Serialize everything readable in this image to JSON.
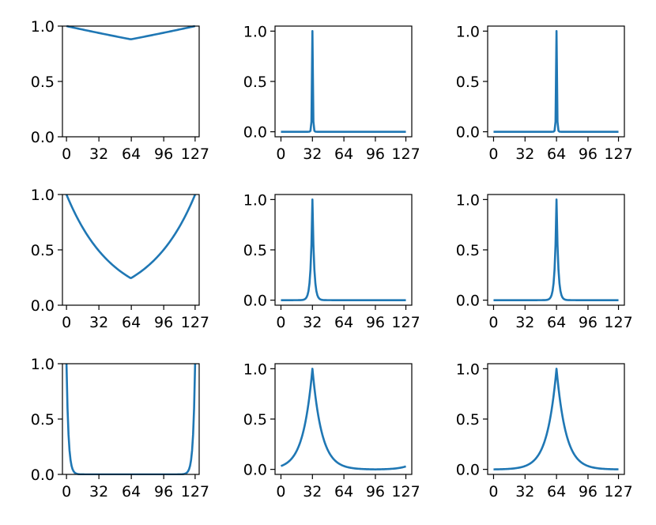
{
  "chart_data": [
    {
      "type": "line",
      "row": 0,
      "col": 0,
      "func": "edge",
      "p": 0.998,
      "xlim": [
        -4,
        131
      ],
      "ylim": [
        0,
        1
      ],
      "xticks": [
        0,
        32,
        64,
        96,
        127
      ],
      "xtick_labels": [
        "0",
        "32",
        "64",
        "96",
        "127"
      ],
      "yticks": [
        0,
        0.5,
        1
      ],
      "ytick_labels": [
        "0.0",
        "0.5",
        "1.0"
      ],
      "color": "#1f77b4",
      "x": [
        0,
        16,
        32,
        48,
        64,
        80,
        96,
        112,
        127
      ],
      "y": [
        1.0,
        0.97,
        0.94,
        0.91,
        0.88,
        0.91,
        0.94,
        0.97,
        1.0
      ]
    },
    {
      "type": "line",
      "row": 0,
      "col": 1,
      "func": "peak",
      "center": 32,
      "p": 0.1,
      "xlim": [
        -6,
        133
      ],
      "ylim": [
        -0.05,
        1.05
      ],
      "xticks": [
        0,
        32,
        64,
        96,
        127
      ],
      "xtick_labels": [
        "0",
        "32",
        "64",
        "96",
        "127"
      ],
      "yticks": [
        0,
        0.5,
        1
      ],
      "ytick_labels": [
        "0.0",
        "0.5",
        "1.0"
      ],
      "color": "#1f77b4",
      "x": [
        0,
        30,
        31,
        32,
        33,
        34,
        64,
        127
      ],
      "y": [
        0,
        0.001,
        0.1,
        1.0,
        0.1,
        0.01,
        0,
        0
      ]
    },
    {
      "type": "line",
      "row": 0,
      "col": 2,
      "func": "peak",
      "center": 64,
      "p": 0.1,
      "xlim": [
        -6,
        133
      ],
      "ylim": [
        -0.05,
        1.05
      ],
      "xticks": [
        0,
        32,
        64,
        96,
        127
      ],
      "xtick_labels": [
        "0",
        "32",
        "64",
        "96",
        "127"
      ],
      "yticks": [
        0,
        0.5,
        1
      ],
      "ytick_labels": [
        "0.0",
        "0.5",
        "1.0"
      ],
      "color": "#1f77b4",
      "x": [
        0,
        62,
        63,
        64,
        65,
        66,
        127
      ],
      "y": [
        0,
        0.001,
        0.1,
        1.0,
        0.1,
        0.01,
        0
      ]
    },
    {
      "type": "line",
      "row": 1,
      "col": 0,
      "func": "edge",
      "p": 0.978,
      "xlim": [
        -4,
        131
      ],
      "ylim": [
        0,
        1
      ],
      "xticks": [
        0,
        32,
        64,
        96,
        127
      ],
      "xtick_labels": [
        "0",
        "32",
        "64",
        "96",
        "127"
      ],
      "yticks": [
        0,
        0.5,
        1
      ],
      "ytick_labels": [
        "0.0",
        "0.5",
        "1.0"
      ],
      "color": "#1f77b4",
      "x": [
        0,
        16,
        32,
        48,
        64,
        80,
        96,
        112,
        127
      ],
      "y": [
        1.0,
        0.7,
        0.49,
        0.35,
        0.24,
        0.35,
        0.49,
        0.7,
        1.0
      ]
    },
    {
      "type": "line",
      "row": 1,
      "col": 1,
      "func": "peak",
      "center": 32,
      "p": 0.55,
      "xlim": [
        -6,
        133
      ],
      "ylim": [
        -0.05,
        1.05
      ],
      "xticks": [
        0,
        32,
        64,
        96,
        127
      ],
      "xtick_labels": [
        "0",
        "32",
        "64",
        "96",
        "127"
      ],
      "yticks": [
        0,
        0.5,
        1
      ],
      "ytick_labels": [
        "0.0",
        "0.5",
        "1.0"
      ],
      "color": "#1f77b4",
      "x": [
        0,
        28,
        30,
        31,
        32,
        33,
        34,
        36,
        64,
        127
      ],
      "y": [
        0,
        0.03,
        0.3,
        0.55,
        1.0,
        0.55,
        0.3,
        0.03,
        0,
        0
      ]
    },
    {
      "type": "line",
      "row": 1,
      "col": 2,
      "func": "peak",
      "center": 64,
      "p": 0.55,
      "xlim": [
        -6,
        133
      ],
      "ylim": [
        -0.05,
        1.05
      ],
      "xticks": [
        0,
        32,
        64,
        96,
        127
      ],
      "xtick_labels": [
        "0",
        "32",
        "64",
        "96",
        "127"
      ],
      "yticks": [
        0,
        0.5,
        1
      ],
      "ytick_labels": [
        "0.0",
        "0.5",
        "1.0"
      ],
      "color": "#1f77b4",
      "x": [
        0,
        60,
        62,
        63,
        64,
        65,
        66,
        68,
        127
      ],
      "y": [
        0,
        0.03,
        0.3,
        0.55,
        1.0,
        0.55,
        0.3,
        0.03,
        0
      ]
    },
    {
      "type": "line",
      "row": 2,
      "col": 0,
      "func": "edge",
      "p": 0.6,
      "xlim": [
        -4,
        131
      ],
      "ylim": [
        0,
        1
      ],
      "xticks": [
        0,
        32,
        64,
        96,
        127
      ],
      "xtick_labels": [
        "0",
        "32",
        "64",
        "96",
        "127"
      ],
      "yticks": [
        0,
        0.5,
        1
      ],
      "ytick_labels": [
        "0.0",
        "0.5",
        "1.0"
      ],
      "color": "#1f77b4",
      "x": [
        0,
        2,
        4,
        8,
        16,
        64,
        112,
        120,
        124,
        127
      ],
      "y": [
        1.0,
        0.36,
        0.13,
        0.02,
        0,
        0,
        0,
        0.02,
        0.3,
        1.0
      ]
    },
    {
      "type": "line",
      "row": 2,
      "col": 1,
      "func": "peak",
      "center": 32,
      "p": 0.9,
      "xlim": [
        -6,
        133
      ],
      "ylim": [
        -0.05,
        1.05
      ],
      "xticks": [
        0,
        32,
        64,
        96,
        127
      ],
      "xtick_labels": [
        "0",
        "32",
        "64",
        "96",
        "127"
      ],
      "yticks": [
        0,
        0.5,
        1
      ],
      "ytick_labels": [
        "0.0",
        "0.5",
        "1.0"
      ],
      "color": "#1f77b4",
      "x": [
        0,
        16,
        24,
        28,
        32,
        36,
        40,
        48,
        64,
        96,
        127
      ],
      "y": [
        0.07,
        0.2,
        0.4,
        0.65,
        1.0,
        0.65,
        0.4,
        0.2,
        0.07,
        0.0,
        0.07
      ]
    },
    {
      "type": "line",
      "row": 2,
      "col": 2,
      "func": "peak",
      "center": 64,
      "p": 0.9,
      "xlim": [
        -6,
        133
      ],
      "ylim": [
        -0.05,
        1.05
      ],
      "xticks": [
        0,
        32,
        64,
        96,
        127
      ],
      "xtick_labels": [
        "0",
        "32",
        "64",
        "96",
        "127"
      ],
      "yticks": [
        0,
        0.5,
        1
      ],
      "ytick_labels": [
        "0.0",
        "0.5",
        "1.0"
      ],
      "color": "#1f77b4",
      "x": [
        0,
        32,
        48,
        56,
        60,
        64,
        68,
        72,
        80,
        96,
        127
      ],
      "y": [
        0.0,
        0.06,
        0.2,
        0.4,
        0.65,
        1.0,
        0.65,
        0.4,
        0.2,
        0.06,
        0.0
      ]
    }
  ]
}
